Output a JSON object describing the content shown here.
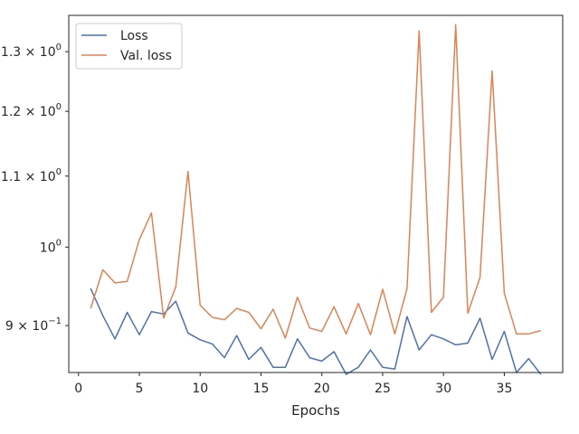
{
  "chart_data": {
    "type": "line",
    "xlabel": "Epochs",
    "ylabel": "",
    "title": "",
    "xlim": [
      -0.8,
      39.8
    ],
    "ylim": [
      0.845,
      1.365
    ],
    "yscale": "log",
    "grid": false,
    "legend": "top-left",
    "x_ticks": [
      0,
      5,
      10,
      15,
      20,
      25,
      30,
      35
    ],
    "y_ticks": [
      {
        "value": 0.9,
        "mantissa": "9",
        "exponent": "−1"
      },
      {
        "value": 1.0,
        "mantissa": "",
        "exponent": "0"
      },
      {
        "value": 1.1,
        "mantissa": "1.1",
        "exponent": "0"
      },
      {
        "value": 1.2,
        "mantissa": "1.2",
        "exponent": "0"
      },
      {
        "value": 1.3,
        "mantissa": "1.3",
        "exponent": "0"
      }
    ],
    "x": [
      1,
      2,
      3,
      4,
      5,
      6,
      7,
      8,
      9,
      10,
      11,
      12,
      13,
      14,
      15,
      16,
      17,
      18,
      19,
      20,
      21,
      22,
      23,
      24,
      25,
      26,
      27,
      28,
      29,
      30,
      31,
      32,
      33,
      34,
      35,
      36,
      37,
      38
    ],
    "series": [
      {
        "name": "Loss",
        "color": "#4c72b0",
        "values": [
          0.946,
          0.912,
          0.884,
          0.916,
          0.889,
          0.917,
          0.914,
          0.93,
          0.891,
          0.883,
          0.878,
          0.862,
          0.888,
          0.86,
          0.874,
          0.851,
          0.851,
          0.884,
          0.862,
          0.858,
          0.869,
          0.843,
          0.851,
          0.871,
          0.851,
          0.849,
          0.911,
          0.871,
          0.889,
          0.884,
          0.877,
          0.879,
          0.909,
          0.86,
          0.893,
          0.845,
          0.861,
          0.843
        ]
      },
      {
        "name": "Val. loss",
        "color": "#dd8452",
        "values": [
          0.921,
          0.97,
          0.953,
          0.955,
          1.01,
          1.047,
          0.909,
          0.948,
          1.107,
          0.925,
          0.91,
          0.907,
          0.921,
          0.916,
          0.896,
          0.92,
          0.885,
          0.935,
          0.897,
          0.893,
          0.923,
          0.89,
          0.927,
          0.889,
          0.945,
          0.89,
          0.946,
          1.337,
          0.916,
          0.935,
          1.348,
          0.915,
          0.96,
          1.267,
          0.94,
          0.89,
          0.89,
          0.894
        ]
      }
    ]
  }
}
